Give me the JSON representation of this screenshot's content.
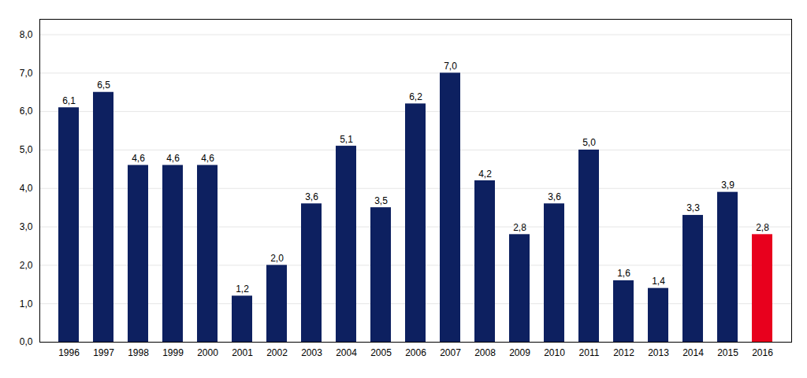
{
  "chart_data": {
    "type": "bar",
    "categories": [
      "1996",
      "1997",
      "1998",
      "1999",
      "2000",
      "2001",
      "2002",
      "2003",
      "2004",
      "2005",
      "2006",
      "2007",
      "2008",
      "2009",
      "2010",
      "2011",
      "2012",
      "2013",
      "2014",
      "2015",
      "2016"
    ],
    "values": [
      6.1,
      6.5,
      4.6,
      4.6,
      4.6,
      1.2,
      2.0,
      3.6,
      5.1,
      3.5,
      6.2,
      7.0,
      4.2,
      2.8,
      3.6,
      5.0,
      1.6,
      1.4,
      3.3,
      3.9,
      2.8
    ],
    "value_labels": [
      "6,1",
      "6,5",
      "4,6",
      "4,6",
      "4,6",
      "1,2",
      "2,0",
      "3,6",
      "5,1",
      "3,5",
      "6,2",
      "7,0",
      "4,2",
      "2,8",
      "3,6",
      "5,0",
      "1,6",
      "1,4",
      "3,3",
      "3,9",
      "2,8"
    ],
    "data_labels": true,
    "colors": [
      "#0d2060",
      "#0d2060",
      "#0d2060",
      "#0d2060",
      "#0d2060",
      "#0d2060",
      "#0d2060",
      "#0d2060",
      "#0d2060",
      "#0d2060",
      "#0d2060",
      "#0d2060",
      "#0d2060",
      "#0d2060",
      "#0d2060",
      "#0d2060",
      "#0d2060",
      "#0d2060",
      "#0d2060",
      "#0d2060",
      "#e8001d"
    ],
    "ylim": [
      0,
      8.4
    ],
    "yticks": [
      {
        "value": 0.0,
        "label": "0,0"
      },
      {
        "value": 1.0,
        "label": "1,0"
      },
      {
        "value": 2.0,
        "label": "2,0"
      },
      {
        "value": 3.0,
        "label": "3,0"
      },
      {
        "value": 4.0,
        "label": "4,0"
      },
      {
        "value": 5.0,
        "label": "5,0"
      },
      {
        "value": 6.0,
        "label": "6,0"
      },
      {
        "value": 7.0,
        "label": "7,0"
      },
      {
        "value": 8.0,
        "label": "8,0"
      }
    ],
    "grid": true
  }
}
